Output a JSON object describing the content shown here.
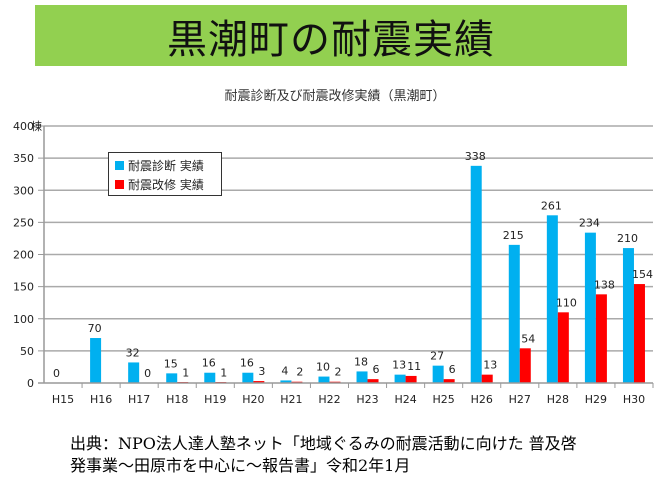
{
  "header": {
    "title": "黒潮町の耐震実績"
  },
  "colors": {
    "banner": "#92d050",
    "diagnosis": "#00b0f0",
    "retrofit": "#ff0000"
  },
  "chart_data": {
    "type": "bar",
    "title": "耐震診断及び耐震改修実績（黒潮町）",
    "xlabel": "",
    "ylabel": "棟",
    "ylim": [
      0,
      400
    ],
    "yticks": [
      0,
      50,
      100,
      150,
      200,
      250,
      300,
      350,
      400
    ],
    "ytick_labels": [
      "0",
      "50",
      "100",
      "150",
      "200",
      "250",
      "300",
      "350",
      "400"
    ],
    "y_unit_label": "棟",
    "grid": true,
    "legend_position": "top-left",
    "categories": [
      "H15",
      "H16",
      "H17",
      "H18",
      "H19",
      "H20",
      "H21",
      "H22",
      "H23",
      "H24",
      "H25",
      "H26",
      "H27",
      "H28",
      "H29",
      "H30"
    ],
    "series": [
      {
        "name": "耐震診断 実績",
        "color": "#00b0f0",
        "values": [
          0,
          70,
          32,
          15,
          16,
          16,
          4,
          10,
          18,
          13,
          27,
          338,
          215,
          261,
          234,
          210
        ]
      },
      {
        "name": "耐震改修 実績",
        "color": "#ff0000",
        "values": [
          null,
          null,
          0,
          1,
          1,
          3,
          2,
          2,
          6,
          11,
          6,
          13,
          54,
          110,
          138,
          154
        ]
      }
    ]
  },
  "source": {
    "line1": "出典：NPO法人達人塾ネット「地域ぐるみの耐震活動に向けた 普及啓",
    "line2": "発事業～田原市を中心に～報告書」令和2年1月"
  }
}
